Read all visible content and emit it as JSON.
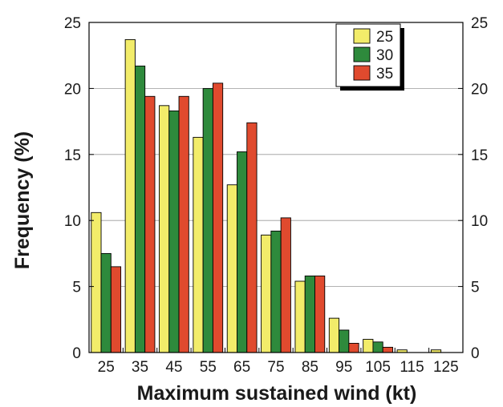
{
  "chart_data": {
    "type": "bar",
    "xlabel": "Maximum sustained wind (kt)",
    "ylabel": "Frequency (%)",
    "ylim": [
      0,
      25
    ],
    "yticks": [
      0,
      5,
      10,
      15,
      20,
      25
    ],
    "categories": [
      "25",
      "35",
      "45",
      "55",
      "65",
      "75",
      "85",
      "95",
      "105",
      "115",
      "125"
    ],
    "grid": "horizontal",
    "legend_position": "top-right",
    "series": [
      {
        "name": "25",
        "color": "#f2ec6a",
        "values": [
          10.6,
          23.7,
          18.7,
          16.3,
          12.7,
          8.9,
          5.4,
          2.6,
          1.0,
          0.2,
          0.2
        ]
      },
      {
        "name": "30",
        "color": "#2e8a3c",
        "values": [
          7.5,
          21.7,
          18.3,
          20.0,
          15.2,
          9.2,
          5.8,
          1.7,
          0.8,
          0.0,
          0.0
        ]
      },
      {
        "name": "35",
        "color": "#e04a2e",
        "values": [
          6.5,
          19.4,
          19.4,
          20.4,
          17.4,
          10.2,
          5.8,
          0.7,
          0.4,
          0.0,
          0.0
        ]
      }
    ]
  }
}
